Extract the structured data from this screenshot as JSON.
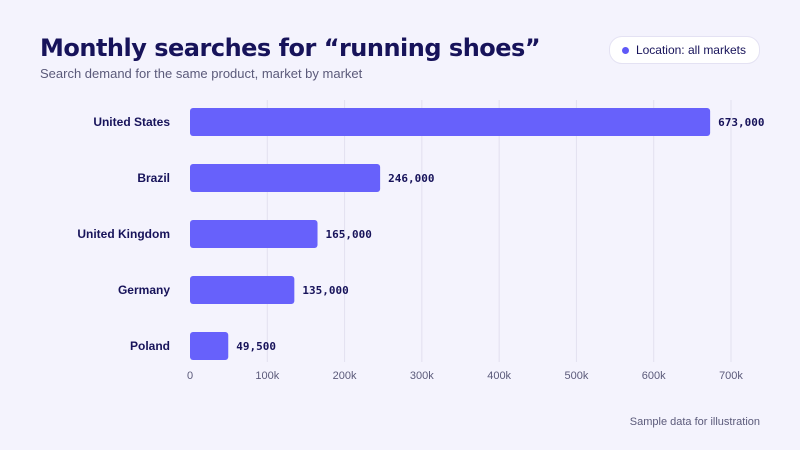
{
  "header": {
    "title": "Monthly searches for “running shoes”",
    "subtitle": "Search demand for the same product, market by market"
  },
  "filter_pill": {
    "label": "Location: all markets",
    "dot_color": "#5f59f7",
    "icon": "dot-icon"
  },
  "footnote": "Sample data for illustration",
  "colors": {
    "bar": "#6761fb",
    "grid": "#e2e0f0",
    "category_label": "#17135a",
    "value_label": "#17135a",
    "tick_label": "#5b5a7a"
  },
  "chart_data": {
    "type": "bar",
    "orientation": "horizontal",
    "categories": [
      "United States",
      "Brazil",
      "United Kingdom",
      "Germany",
      "Poland"
    ],
    "values": [
      673000,
      246000,
      165000,
      135000,
      49500
    ],
    "value_labels": [
      "673,000",
      "246,000",
      "165,000",
      "135,000",
      "49,500"
    ],
    "xlim": [
      0,
      700000
    ],
    "x_ticks": [
      0,
      100000,
      200000,
      300000,
      400000,
      500000,
      600000,
      700000
    ],
    "x_tick_labels": [
      "0",
      "100k",
      "200k",
      "300k",
      "400k",
      "500k",
      "600k",
      "700k"
    ],
    "grid": true,
    "xlabel": "",
    "ylabel": ""
  }
}
